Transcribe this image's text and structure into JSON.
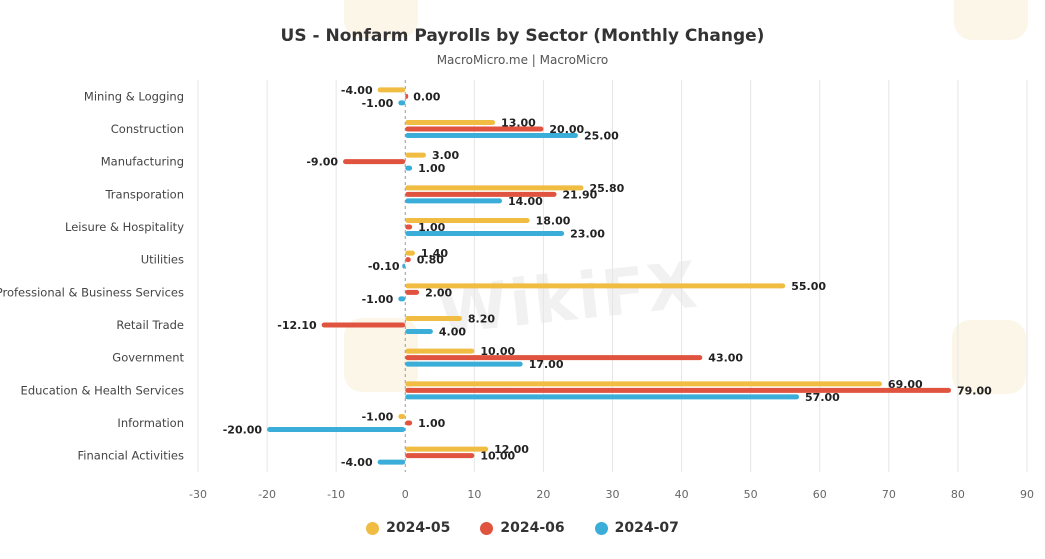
{
  "chart_data": {
    "type": "bar",
    "orientation": "horizontal",
    "title": "US - Nonfarm Payrolls by Sector (Monthly Change)",
    "subtitle": "MacroMicro.me | MacroMicro",
    "categories": [
      "Mining & Logging",
      "Construction",
      "Manufacturing",
      "Transporation",
      "Leisure & Hospitality",
      "Utilities",
      "Professional & Business Services",
      "Retail Trade",
      "Government",
      "Education & Health Services",
      "Information",
      "Financial Activities"
    ],
    "series": [
      {
        "name": "2024-05",
        "color": "#f0bc42",
        "values": [
          -4.0,
          13.0,
          3.0,
          25.8,
          18.0,
          1.4,
          55.0,
          8.2,
          10.0,
          69.0,
          -1.0,
          12.0
        ],
        "labels": [
          "-4.00",
          "13.00",
          "3.00",
          "25.80",
          "18.00",
          "1.40",
          "55.00",
          "8.20",
          "10.00",
          "69.00",
          "-1.00",
          "12.00"
        ]
      },
      {
        "name": "2024-06",
        "color": "#e0533f",
        "values": [
          0.0,
          20.0,
          -9.0,
          21.9,
          1.0,
          0.8,
          2.0,
          -12.1,
          43.0,
          79.0,
          1.0,
          10.0
        ],
        "labels": [
          "0.00",
          "20.00",
          "-9.00",
          "21.90",
          "1.00",
          "0.80",
          "2.00",
          "-12.10",
          "43.00",
          "79.00",
          "1.00",
          "10.00"
        ]
      },
      {
        "name": "2024-07",
        "color": "#3aaed8",
        "values": [
          -1.0,
          25.0,
          1.0,
          14.0,
          23.0,
          -0.1,
          -1.0,
          4.0,
          17.0,
          57.0,
          -20.0,
          -4.0
        ],
        "labels": [
          "-1.00",
          "25.00",
          "1.00",
          "14.00",
          "23.00",
          "-0.10",
          "-1.00",
          "4.00",
          "17.00",
          "57.00",
          "-20.00",
          "-4.00"
        ]
      }
    ],
    "xlim": [
      -30,
      90
    ],
    "xticks": [
      -30,
      -20,
      -10,
      0,
      10,
      20,
      30,
      40,
      50,
      60,
      70,
      80,
      90
    ],
    "grid": true,
    "legend": "bottom-center"
  },
  "watermark": "WikiFX"
}
